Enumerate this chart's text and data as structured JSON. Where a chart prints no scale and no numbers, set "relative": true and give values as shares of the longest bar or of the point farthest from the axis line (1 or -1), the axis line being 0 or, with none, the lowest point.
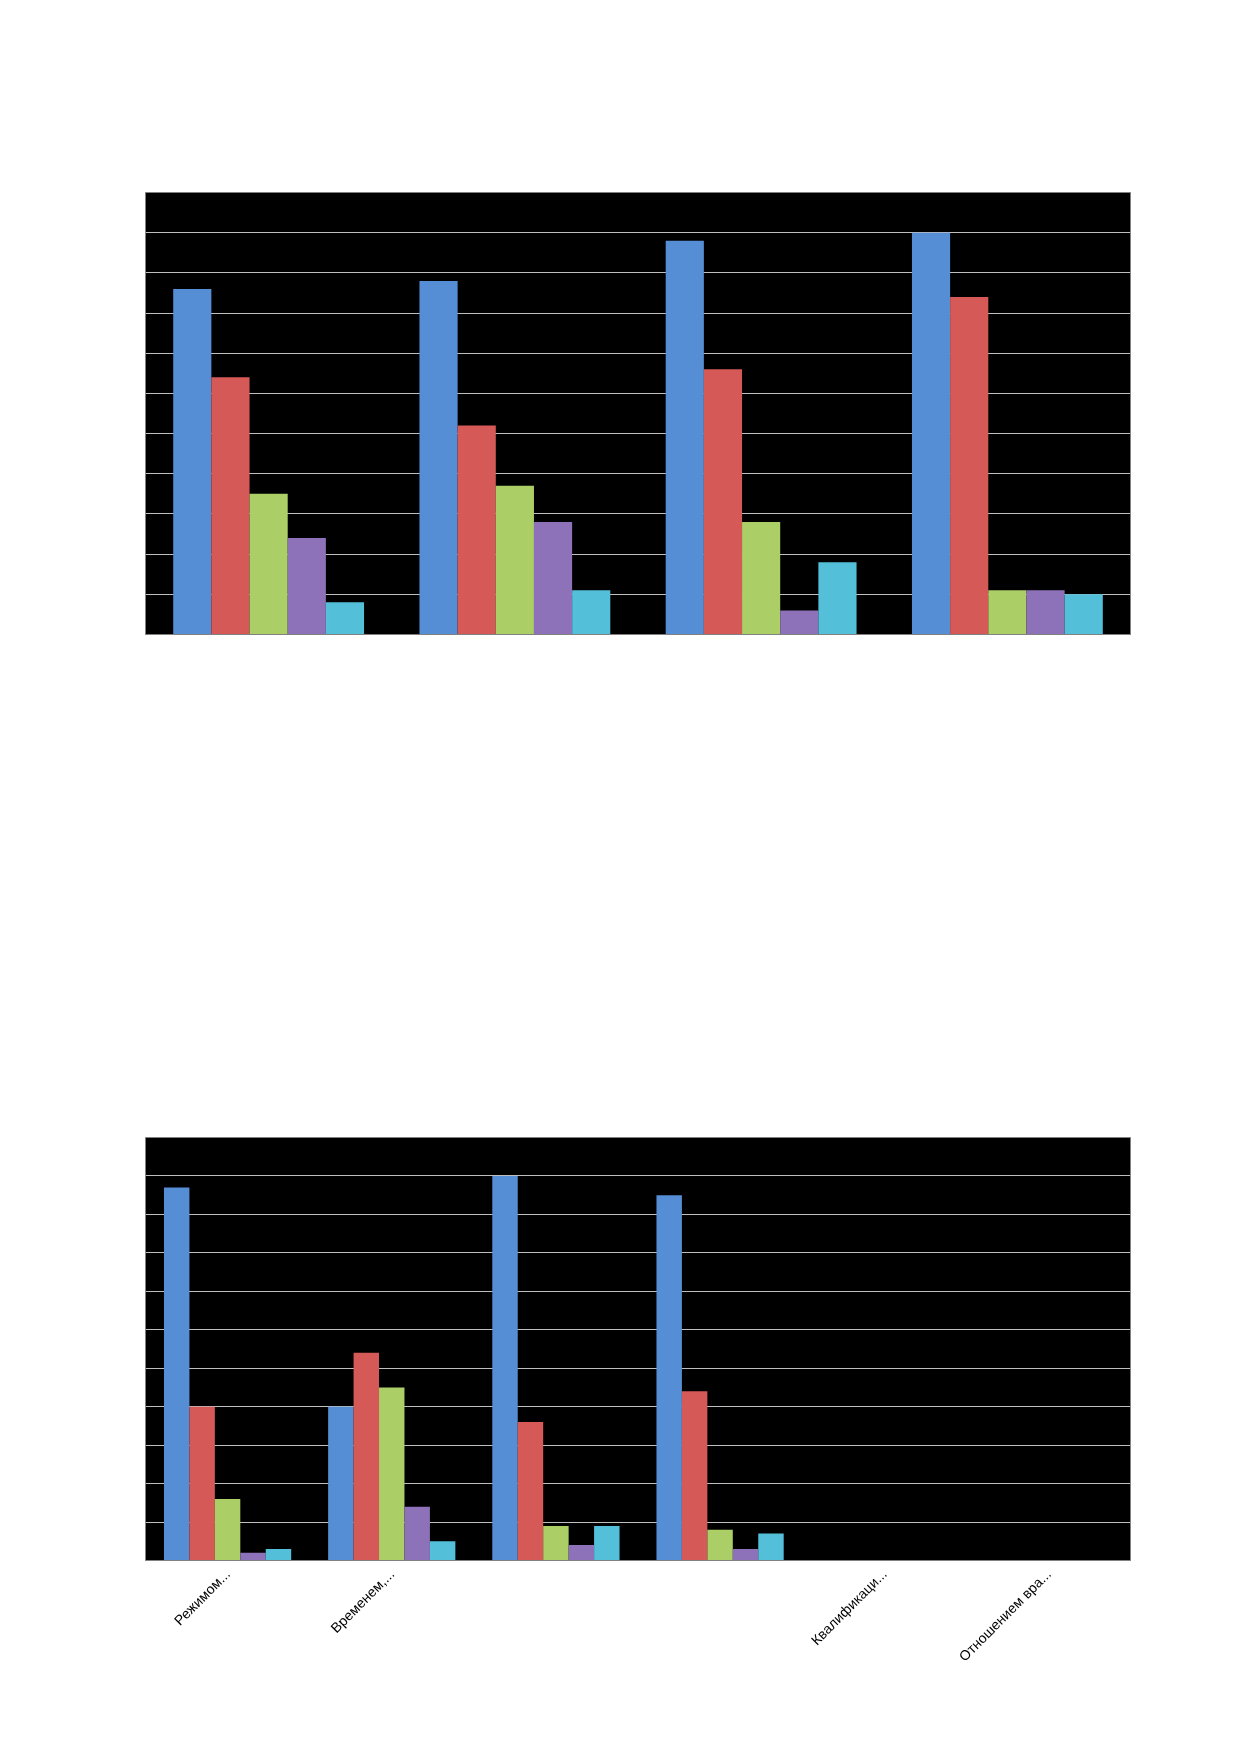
{
  "chart_data": [
    {
      "type": "bar",
      "relative": true,
      "categories": [
        null,
        null,
        null,
        null
      ],
      "series": [
        {
          "color": "#558ED5",
          "values": [
            0.86,
            0.88,
            0.98,
            1
          ]
        },
        {
          "color": "#D55A57",
          "values": [
            0.64,
            0.52,
            0.66,
            0.84
          ]
        },
        {
          "color": "#ACCE66",
          "values": [
            0.35,
            0.37,
            0.28,
            0.11
          ]
        },
        {
          "color": "#8E72B9",
          "values": [
            0.24,
            0.28,
            0.06,
            0.11
          ]
        },
        {
          "color": "#53BFD8",
          "values": [
            0.08,
            0.11,
            0.18,
            0.1
          ]
        }
      ],
      "grid": "y",
      "tick_labels": false
    },
    {
      "type": "bar",
      "relative": true,
      "categories": [
        "Режимом...",
        "Временем,...",
        null,
        null,
        "Квалификаци...",
        "Отношением вра..."
      ],
      "series": [
        {
          "color": "#558ED5",
          "values": [
            0.97,
            0.4,
            1,
            0.95,
            null,
            null
          ]
        },
        {
          "color": "#D55A57",
          "values": [
            0.4,
            0.54,
            0.36,
            0.44,
            null,
            null
          ]
        },
        {
          "color": "#ACCE66",
          "values": [
            0.16,
            0.45,
            0.09,
            0.08,
            null,
            null
          ]
        },
        {
          "color": "#8E72B9",
          "values": [
            0.02,
            0.14,
            0.04,
            0.03,
            null,
            null
          ]
        },
        {
          "color": "#53BFD8",
          "values": [
            0.03,
            0.05,
            0.09,
            0.07,
            null,
            null
          ]
        }
      ],
      "grid": "y",
      "tick_labels": "x"
    }
  ]
}
